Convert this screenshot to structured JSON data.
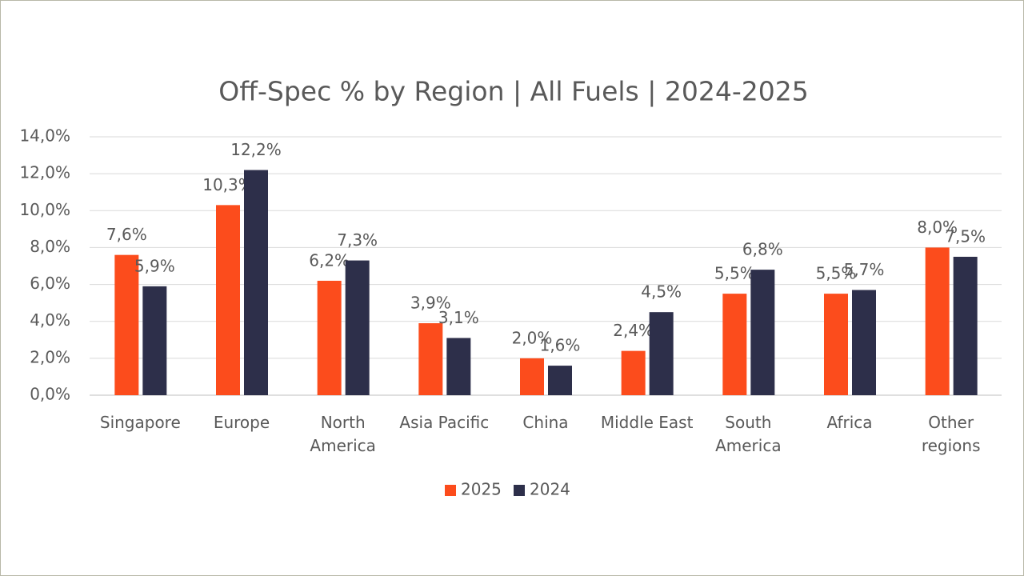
{
  "chart_data": {
    "type": "bar",
    "title": "Off-Spec % by Region | All Fuels | 2024-2025",
    "categories": [
      "Singapore",
      "Europe",
      "North America",
      "Asia Pacific",
      "China",
      "Middle East",
      "South America",
      "Africa",
      "Other regions"
    ],
    "series": [
      {
        "name": "2025",
        "color": "#fc4c1c",
        "values": [
          7.6,
          10.3,
          6.2,
          3.9,
          2.0,
          2.4,
          5.5,
          5.5,
          8.0
        ],
        "value_labels": [
          "7,6%",
          "10,3%",
          "6,2%",
          "3,9%",
          "2,0%",
          "2,4%",
          "5,5%",
          "5,5%",
          "8,0%"
        ]
      },
      {
        "name": "2024",
        "color": "#2d2f4a",
        "values": [
          5.9,
          12.2,
          7.3,
          3.1,
          1.6,
          4.5,
          6.8,
          5.7,
          7.5
        ],
        "value_labels": [
          "5,9%",
          "12,2%",
          "7,3%",
          "3,1%",
          "1,6%",
          "4,5%",
          "6,8%",
          "5,7%",
          "7,5%"
        ]
      }
    ],
    "ylim": [
      0,
      14
    ],
    "yticks": [
      {
        "value": 0,
        "label": "0,0%"
      },
      {
        "value": 2,
        "label": "2,0%"
      },
      {
        "value": 4,
        "label": "4,0%"
      },
      {
        "value": 6,
        "label": "6,0%"
      },
      {
        "value": 8,
        "label": "8,0%"
      },
      {
        "value": 10,
        "label": "10,0%"
      },
      {
        "value": 12,
        "label": "12,0%"
      },
      {
        "value": 14,
        "label": "14,0%"
      }
    ],
    "grid": true,
    "legend": "bottom"
  }
}
